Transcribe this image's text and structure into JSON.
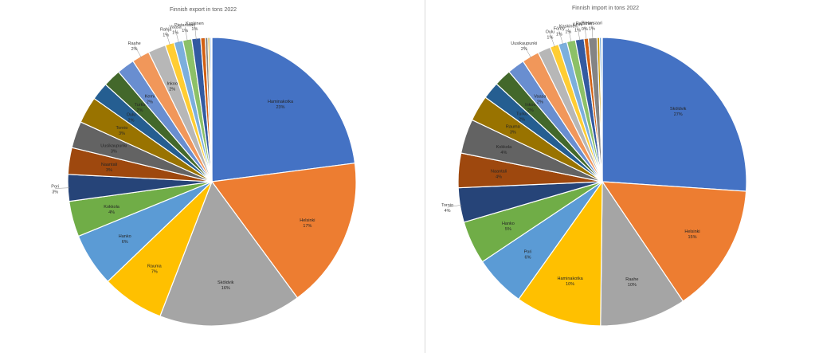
{
  "colors": [
    "#4472C4",
    "#ED7D31",
    "#A5A5A5",
    "#FFC000",
    "#5B9BD5",
    "#70AD47",
    "#264478",
    "#9E480E",
    "#636363",
    "#997300",
    "#255E91",
    "#43682B",
    "#698ED0",
    "#F1975A",
    "#B7B7B7",
    "#FFCD33",
    "#7CAFDD",
    "#8CC168",
    "#335AA1",
    "#D26012",
    "#848484",
    "#CC9A00",
    "#327DC2",
    "#5A8A39"
  ],
  "chart_data": [
    {
      "type": "pie",
      "title": "Finnish export in tons 2022",
      "slices": [
        {
          "label": "Haminakotka",
          "value": 23,
          "pct": "23%"
        },
        {
          "label": "Helsinki",
          "value": 17,
          "pct": "17%"
        },
        {
          "label": "Sköldvik",
          "value": 16,
          "pct": "16%"
        },
        {
          "label": "Rauma",
          "value": 7,
          "pct": "7%"
        },
        {
          "label": "Hanko",
          "value": 6,
          "pct": "6%"
        },
        {
          "label": "Kokkola",
          "value": 4,
          "pct": "4%"
        },
        {
          "label": "Pori",
          "value": 3,
          "pct": "3%"
        },
        {
          "label": "Naantali",
          "value": 3,
          "pct": "3%"
        },
        {
          "label": "Uusikaupunki",
          "value": 3,
          "pct": "3%"
        },
        {
          "label": "Tornio",
          "value": 3,
          "pct": "3%"
        },
        {
          "label": "Oulu",
          "value": 2,
          "pct": "2%"
        },
        {
          "label": "Turku",
          "value": 2,
          "pct": "2%"
        },
        {
          "label": "Kemi",
          "value": 2,
          "pct": "2%"
        },
        {
          "label": "Raahe",
          "value": 2,
          "pct": "2%"
        },
        {
          "label": "Inkoo",
          "value": 2,
          "pct": "2%"
        },
        {
          "label": "Rahja",
          "value": 1,
          "pct": "1%"
        },
        {
          "label": "Vaasa",
          "value": 1,
          "pct": "1%"
        },
        {
          "label": "Pietarsaari",
          "value": 1,
          "pct": "1%"
        },
        {
          "label": "Kaskinen",
          "value": 1,
          "pct": "1%"
        },
        {
          "label": "",
          "value": 0.5,
          "pct": ""
        },
        {
          "label": "",
          "value": 0.3,
          "pct": ""
        },
        {
          "label": "",
          "value": 0.2,
          "pct": ""
        },
        {
          "label": "",
          "value": 0.15,
          "pct": ""
        },
        {
          "label": "",
          "value": 0.1,
          "pct": ""
        }
      ]
    },
    {
      "type": "pie",
      "title": "Finnish import in tons 2022",
      "slices": [
        {
          "label": "Sköldvik",
          "value": 27,
          "pct": "27%"
        },
        {
          "label": "Helsinki",
          "value": 15,
          "pct": "15%"
        },
        {
          "label": "Raahe",
          "value": 10,
          "pct": "10%"
        },
        {
          "label": "Haminakotka",
          "value": 10,
          "pct": "10%"
        },
        {
          "label": "Pori",
          "value": 6,
          "pct": "6%"
        },
        {
          "label": "Hanko",
          "value": 5,
          "pct": "5%"
        },
        {
          "label": "Tornio",
          "value": 4,
          "pct": "4%"
        },
        {
          "label": "Naantali",
          "value": 4,
          "pct": "4%"
        },
        {
          "label": "Kokkola",
          "value": 4,
          "pct": "4%"
        },
        {
          "label": "Rauma",
          "value": 3,
          "pct": "3%"
        },
        {
          "label": "Turku",
          "value": 2,
          "pct": "2%"
        },
        {
          "label": "Inkoo",
          "value": 2,
          "pct": "2%"
        },
        {
          "label": "Vaasa",
          "value": 2,
          "pct": "2%"
        },
        {
          "label": "Uusikaupunki",
          "value": 2,
          "pct": "2%"
        },
        {
          "label": "",
          "value": 1.5,
          "pct": ""
        },
        {
          "label": "Oulu",
          "value": 1,
          "pct": "1%"
        },
        {
          "label": "Förby",
          "value": 1,
          "pct": "1%"
        },
        {
          "label": "Kaskinen",
          "value": 1,
          "pct": "1%"
        },
        {
          "label": "Kemi",
          "value": 1,
          "pct": "1%"
        },
        {
          "label": "Parainen",
          "value": 0.5,
          "pct": "0%"
        },
        {
          "label": "Pietarsaari",
          "value": 1,
          "pct": "1%"
        },
        {
          "label": "",
          "value": 0.3,
          "pct": ""
        },
        {
          "label": "",
          "value": 0.2,
          "pct": ""
        },
        {
          "label": "",
          "value": 0.1,
          "pct": ""
        }
      ]
    }
  ]
}
